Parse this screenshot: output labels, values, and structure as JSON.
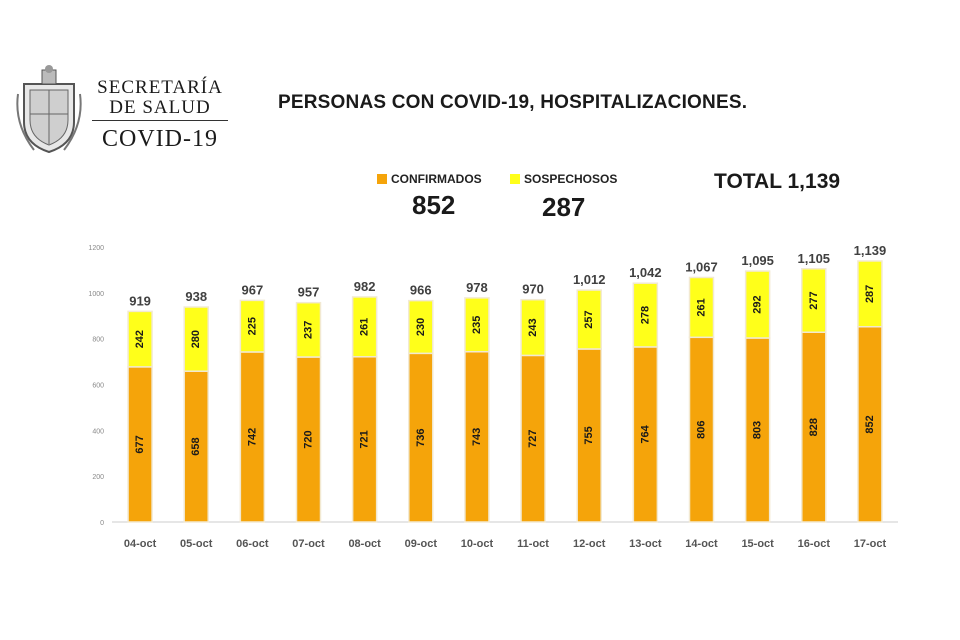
{
  "header": {
    "org_line1": "SECRETARÍA",
    "org_line2": "DE SALUD",
    "org_line3": "COVID-19",
    "title": "PERSONAS CON COVID-19, HOSPITALIZACIONES."
  },
  "legend": {
    "confirmed_label": "CONFIRMADOS",
    "suspected_label": "SOSPECHOSOS",
    "confirmed_total": "852",
    "suspected_total": "287",
    "total_text": "TOTAL 1,139"
  },
  "colors": {
    "confirmed": "#f5a40a",
    "suspected": "#ffff1a",
    "edge": "#f2e9d2"
  },
  "chart_data": {
    "type": "bar",
    "stacked": true,
    "categories": [
      "04-oct",
      "05-oct",
      "06-oct",
      "07-oct",
      "08-oct",
      "09-oct",
      "10-oct",
      "11-oct",
      "12-oct",
      "13-oct",
      "14-oct",
      "15-oct",
      "16-oct",
      "17-oct"
    ],
    "series": [
      {
        "name": "CONFIRMADOS",
        "values": [
          677,
          658,
          742,
          720,
          721,
          736,
          743,
          727,
          755,
          764,
          806,
          803,
          828,
          852
        ]
      },
      {
        "name": "SOSPECHOSOS",
        "values": [
          242,
          280,
          225,
          237,
          261,
          230,
          235,
          243,
          257,
          278,
          261,
          292,
          277,
          287
        ]
      }
    ],
    "totals": [
      "919",
      "938",
      "967",
      "957",
      "982",
      "966",
      "978",
      "970",
      "1,012",
      "1,042",
      "1,067",
      "1,095",
      "1,105",
      "1,139"
    ],
    "yticks": [
      0,
      200,
      400,
      600,
      800,
      1000,
      1200
    ],
    "ylim": [
      0,
      1200
    ],
    "grid": false,
    "legend_position": "top"
  }
}
